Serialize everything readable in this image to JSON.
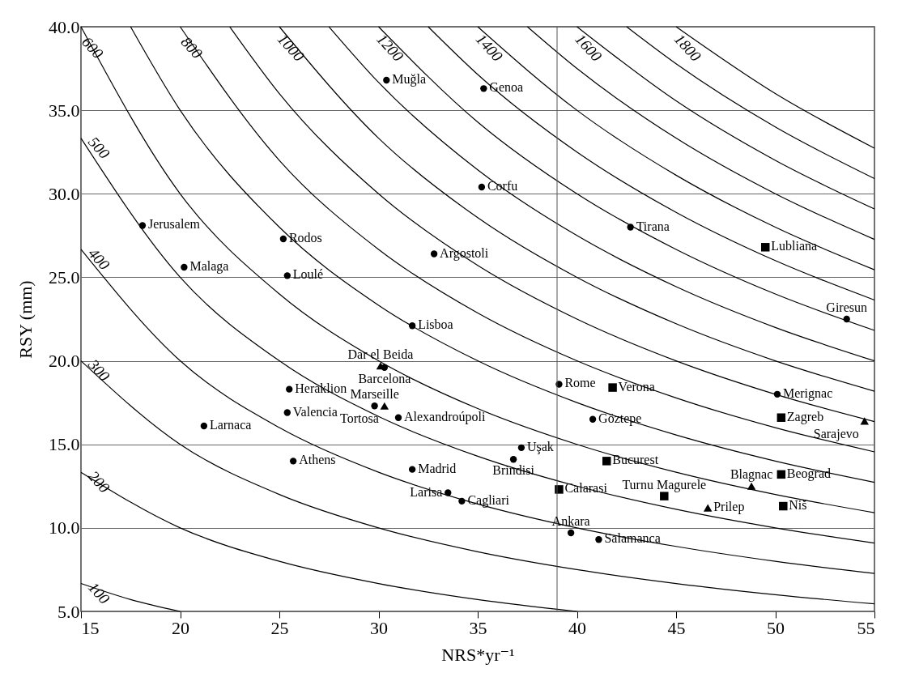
{
  "chart_data": {
    "type": "scatter",
    "xlabel": "NRS*yr⁻¹",
    "ylabel": "RSY (mm)",
    "xlim": [
      15,
      55
    ],
    "ylim": [
      5,
      40
    ],
    "xticks": [
      15,
      20,
      25,
      30,
      35,
      40,
      45,
      50,
      55
    ],
    "yticks": [
      {
        "value": 5,
        "label": "5.0"
      },
      {
        "value": 10,
        "label": "10.0"
      },
      {
        "value": 15,
        "label": "15.0"
      },
      {
        "value": 20,
        "label": "20.0"
      },
      {
        "value": 25,
        "label": "25.0"
      },
      {
        "value": 30,
        "label": "30.0"
      },
      {
        "value": 35,
        "label": "35.0"
      },
      {
        "value": 40,
        "label": "40.0"
      }
    ],
    "grid": "y",
    "ref_lines": [
      {
        "axis": "x",
        "value": 39,
        "color": "#555555"
      }
    ],
    "series": [
      {
        "type": "line",
        "name": "100",
        "color": "#000000",
        "x": [
          15,
          17.5,
          20
        ],
        "values": [
          6.67,
          5.71,
          5.0
        ]
      },
      {
        "type": "line",
        "name": "200",
        "color": "#000000",
        "x": [
          15,
          20,
          25,
          30,
          35,
          40
        ],
        "values": [
          13.33,
          10,
          8,
          6.67,
          5.71,
          5
        ]
      },
      {
        "type": "line",
        "name": "300",
        "color": "#000000",
        "x": [
          15,
          20,
          25,
          30,
          35,
          40,
          45,
          50,
          55
        ],
        "values": [
          20,
          15,
          12,
          10,
          8.57,
          7.5,
          6.67,
          6,
          5.45
        ]
      },
      {
        "type": "line",
        "name": "400",
        "color": "#000000",
        "x": [
          15,
          20,
          25,
          30,
          35,
          40,
          45,
          50,
          55
        ],
        "values": [
          26.67,
          20,
          16,
          13.33,
          11.43,
          10,
          8.89,
          8,
          7.27
        ]
      },
      {
        "type": "line",
        "name": "500",
        "color": "#000000",
        "x": [
          15,
          20,
          25,
          30,
          35,
          40,
          45,
          50,
          55
        ],
        "values": [
          33.33,
          25,
          20,
          16.67,
          14.29,
          12.5,
          11.11,
          10,
          9.09
        ]
      },
      {
        "type": "line",
        "name": "600",
        "color": "#000000",
        "x": [
          15,
          20,
          25,
          30,
          35,
          40,
          45,
          50,
          55
        ],
        "values": [
          40,
          30,
          24,
          20,
          17.14,
          15,
          13.33,
          12,
          10.91
        ]
      },
      {
        "type": "line",
        "color": "#000000",
        "x": [
          17.5,
          20,
          25,
          30,
          35,
          40,
          45,
          50,
          55
        ],
        "values": [
          40,
          35,
          28,
          23.33,
          20,
          17.5,
          15.56,
          14,
          12.73
        ]
      },
      {
        "type": "line",
        "name": "800",
        "color": "#000000",
        "x": [
          20,
          25,
          30,
          35,
          40,
          45,
          50,
          55
        ],
        "values": [
          40,
          32,
          26.67,
          22.86,
          20,
          17.78,
          16,
          14.55
        ]
      },
      {
        "type": "line",
        "color": "#000000",
        "x": [
          22.5,
          25,
          30,
          35,
          40,
          45,
          50,
          55
        ],
        "values": [
          40,
          36,
          30,
          25.71,
          22.5,
          20,
          18,
          16.36
        ]
      },
      {
        "type": "line",
        "name": "1000",
        "color": "#000000",
        "x": [
          25,
          30,
          35,
          40,
          45,
          50,
          55
        ],
        "values": [
          40,
          33.33,
          28.57,
          25,
          22.22,
          20,
          18.18
        ]
      },
      {
        "type": "line",
        "color": "#000000",
        "x": [
          27.5,
          30,
          35,
          40,
          45,
          50,
          55
        ],
        "values": [
          40,
          36.67,
          31.43,
          27.5,
          24.44,
          22,
          20
        ]
      },
      {
        "type": "line",
        "name": "1200",
        "color": "#000000",
        "x": [
          30,
          35,
          40,
          45,
          50,
          55
        ],
        "values": [
          40,
          34.29,
          30,
          26.67,
          24,
          21.82
        ]
      },
      {
        "type": "line",
        "color": "#000000",
        "x": [
          32.5,
          35,
          40,
          45,
          50,
          55
        ],
        "values": [
          40,
          37.14,
          32.5,
          28.89,
          26,
          23.64
        ]
      },
      {
        "type": "line",
        "name": "1400",
        "color": "#000000",
        "x": [
          35,
          40,
          45,
          50,
          55
        ],
        "values": [
          40,
          35,
          31.11,
          28,
          25.45
        ]
      },
      {
        "type": "line",
        "color": "#000000",
        "x": [
          37.5,
          40,
          45,
          50,
          55
        ],
        "values": [
          40,
          37.5,
          33.33,
          30,
          27.27
        ]
      },
      {
        "type": "line",
        "name": "1600",
        "color": "#000000",
        "x": [
          40,
          45,
          50,
          55
        ],
        "values": [
          40,
          35.56,
          32,
          29.09
        ]
      },
      {
        "type": "line",
        "color": "#000000",
        "x": [
          42.5,
          45,
          50,
          55
        ],
        "values": [
          40,
          37.78,
          34,
          30.91
        ]
      },
      {
        "type": "line",
        "name": "1800",
        "color": "#000000",
        "x": [
          45,
          50,
          55
        ],
        "values": [
          40,
          36,
          32.73
        ]
      },
      {
        "marker": "circle",
        "color": "#000000",
        "x": [
          18.1,
          20.2,
          25.2,
          25.4,
          30.4,
          35.3,
          35.2,
          32.8,
          31.7,
          25.5,
          29.8,
          30.3,
          25.4,
          21.2,
          25.7,
          31.0,
          31.7,
          37.2,
          36.8,
          33.5,
          34.2,
          39.1,
          40.8,
          39.7,
          41.1,
          42.7,
          53.6,
          50.1
        ],
        "values": [
          28.1,
          25.6,
          27.3,
          25.1,
          36.8,
          36.3,
          30.4,
          26.4,
          22.1,
          18.3,
          17.3,
          19.6,
          16.9,
          16.1,
          14.0,
          16.6,
          13.5,
          14.8,
          14.1,
          12.1,
          11.6,
          18.6,
          16.5,
          9.7,
          9.3,
          28.0,
          22.5,
          18.0
        ]
      },
      {
        "marker": "square",
        "color": "#000000",
        "x": [
          49.5,
          41.8,
          50.3,
          41.5,
          39.1,
          44.4,
          50.3,
          50.4
        ],
        "values": [
          26.8,
          18.4,
          16.6,
          14.0,
          12.3,
          11.9,
          13.2,
          11.3
        ]
      },
      {
        "marker": "triangle",
        "color": "#000000",
        "x": [
          54.5,
          48.8,
          46.6,
          30.3,
          30.1
        ],
        "values": [
          16.4,
          12.5,
          11.2,
          17.3,
          19.7
        ]
      }
    ],
    "annotations": [
      {
        "text": "Jerusalem",
        "x": 18.1,
        "y": 28.1
      },
      {
        "text": "Malaga",
        "x": 20.2,
        "y": 25.6
      },
      {
        "text": "Rodos",
        "x": 25.2,
        "y": 27.3
      },
      {
        "text": "Loulé",
        "x": 25.4,
        "y": 25.1
      },
      {
        "text": "Muğla",
        "x": 30.4,
        "y": 36.8
      },
      {
        "text": "Genoa",
        "x": 35.3,
        "y": 36.3
      },
      {
        "text": "Corfu",
        "x": 35.2,
        "y": 30.4
      },
      {
        "text": "Argostoli",
        "x": 32.8,
        "y": 26.4
      },
      {
        "text": "Lisboa",
        "x": 31.7,
        "y": 22.1
      },
      {
        "text": "Dar el Beida",
        "x": 30.1,
        "y": 19.7
      },
      {
        "text": "Barcelona",
        "x": 30.3,
        "y": 19.6
      },
      {
        "text": "Heraklion",
        "x": 25.5,
        "y": 18.3
      },
      {
        "text": "Marseille",
        "x": 29.8,
        "y": 17.3
      },
      {
        "text": "Tortosa",
        "x": 30.3,
        "y": 17.3
      },
      {
        "text": "Valencia",
        "x": 25.4,
        "y": 16.9
      },
      {
        "text": "Larnaca",
        "x": 21.2,
        "y": 16.1
      },
      {
        "text": "Athens",
        "x": 25.7,
        "y": 14.0
      },
      {
        "text": "Alexandroúpoli",
        "x": 31.0,
        "y": 16.6
      },
      {
        "text": "Madrid",
        "x": 31.7,
        "y": 13.5
      },
      {
        "text": "Uşak",
        "x": 37.2,
        "y": 14.8
      },
      {
        "text": "Brindisi",
        "x": 36.8,
        "y": 14.1
      },
      {
        "text": "Larisa",
        "x": 33.5,
        "y": 12.1
      },
      {
        "text": "Cagliari",
        "x": 34.2,
        "y": 11.6
      },
      {
        "text": "Rome",
        "x": 39.1,
        "y": 18.6
      },
      {
        "text": "Verona",
        "x": 41.8,
        "y": 18.4
      },
      {
        "text": "Göztepe",
        "x": 40.8,
        "y": 16.5
      },
      {
        "text": "Bucurest",
        "x": 41.5,
        "y": 14.0
      },
      {
        "text": "Calarasi",
        "x": 39.1,
        "y": 12.3
      },
      {
        "text": "Turnu Magurele",
        "x": 44.4,
        "y": 11.9
      },
      {
        "text": "Ankara",
        "x": 39.7,
        "y": 9.7
      },
      {
        "text": "Salamanca",
        "x": 41.1,
        "y": 9.3
      },
      {
        "text": "Tirana",
        "x": 42.7,
        "y": 28.0
      },
      {
        "text": "Lubliana",
        "x": 49.5,
        "y": 26.8
      },
      {
        "text": "Giresun",
        "x": 53.6,
        "y": 22.5
      },
      {
        "text": "Merignac",
        "x": 50.1,
        "y": 18.0
      },
      {
        "text": "Zagreb",
        "x": 50.3,
        "y": 16.6
      },
      {
        "text": "Sarajevo",
        "x": 54.5,
        "y": 16.4
      },
      {
        "text": "Beograd",
        "x": 50.3,
        "y": 13.2
      },
      {
        "text": "Blagnac",
        "x": 48.8,
        "y": 12.5
      },
      {
        "text": "Prilep",
        "x": 46.6,
        "y": 11.2
      },
      {
        "text": "Niš",
        "x": 50.4,
        "y": 11.3
      }
    ]
  }
}
